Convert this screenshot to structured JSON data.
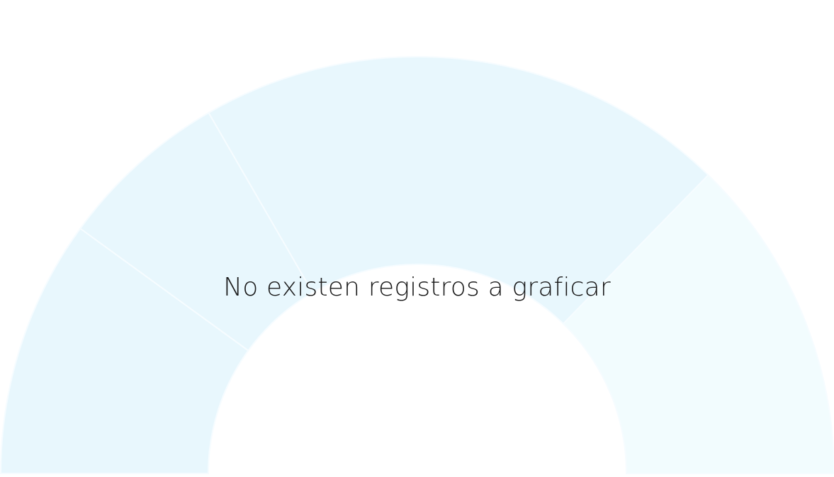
{
  "message": "No existen registros a graficar",
  "chart_data": {
    "type": "pie",
    "variant": "semi-donut",
    "state": "empty-placeholder",
    "segments": [
      {
        "share": 0.2,
        "color": "#e8f7fd"
      },
      {
        "share": 0.133,
        "color": "#e8f7fd"
      },
      {
        "share": 0.413,
        "color": "#e8f7fd"
      },
      {
        "share": 0.254,
        "color": "#f2fcfe"
      }
    ],
    "separator_color": "#f6fcff"
  }
}
